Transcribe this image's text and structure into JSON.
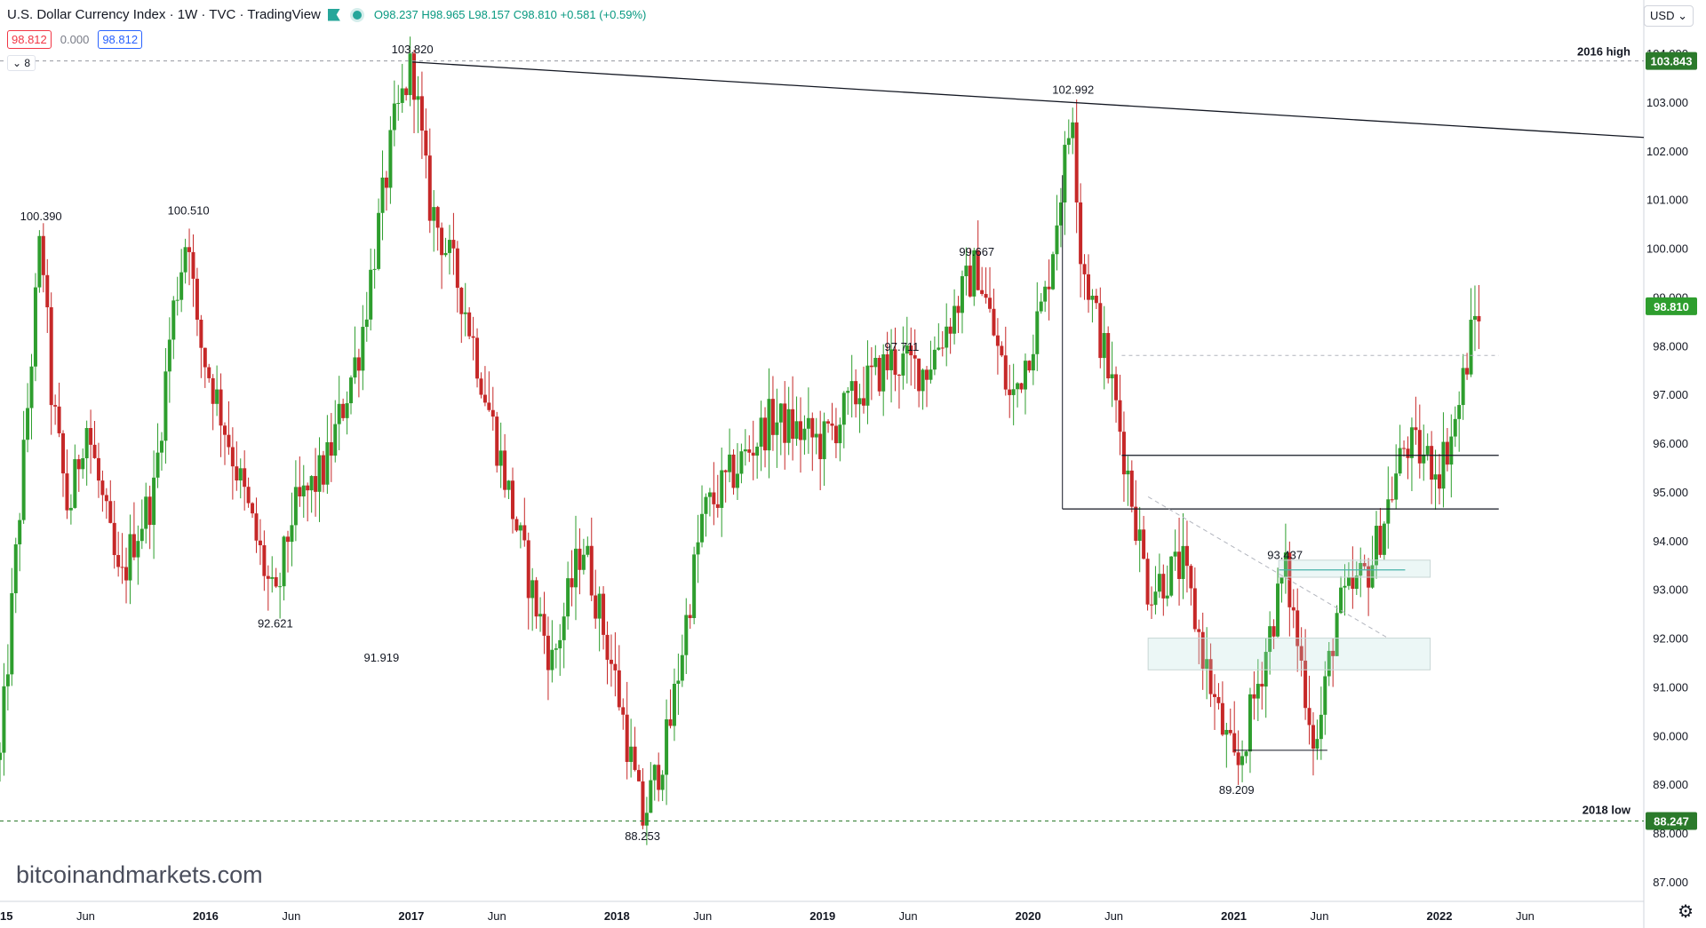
{
  "header": {
    "title": "U.S. Dollar Currency Index · 1W · TVC · TradingView",
    "ohlc": "O98.237 H98.965 L98.157 C98.810 +0.581 (+0.59%)",
    "values": {
      "close": "98.812",
      "change": "0.000",
      "last": "98.812"
    },
    "collapse_label": "⌄ 8",
    "currency": "USD"
  },
  "watermark": "bitcoinandmarkets.com",
  "price_axis": {
    "ticks": [
      "104.000",
      "103.000",
      "102.000",
      "101.000",
      "100.000",
      "99.000",
      "98.000",
      "97.000",
      "96.000",
      "95.000",
      "94.000",
      "93.000",
      "92.000",
      "91.000",
      "90.000",
      "89.000",
      "88.000",
      "87.000"
    ],
    "last_price_tag": "98.810",
    "high_tag": "103.843",
    "low_tag": "88.247"
  },
  "time_axis": {
    "labels": [
      "2015",
      "Jun",
      "2016",
      "Jun",
      "2017",
      "Jun",
      "2018",
      "Jun",
      "2019",
      "Jun",
      "2020",
      "Jun",
      "2021",
      "Jun",
      "2022",
      "Jun"
    ]
  },
  "annotations": {
    "level_labels": [
      "2016 high",
      "2018 low"
    ],
    "peak_labels": [
      "100.390",
      "92.621",
      "100.510",
      "91.919",
      "103.820",
      "88.253",
      "97.711",
      "99.667",
      "102.992",
      "93.437",
      "89.209"
    ]
  },
  "colors": {
    "up": "#26a69a",
    "down": "#ef5350",
    "up_body": "#2e9e2e",
    "down_body": "#c62828",
    "high_tag": "#2b7a2b",
    "low_tag": "#2b7a2b",
    "last_tag": "#2e9e2e"
  },
  "chart_data": {
    "type": "candlestick",
    "title": "U.S. Dollar Currency Index",
    "interval": "1W",
    "x_range": [
      "2015-01",
      "2022-09"
    ],
    "y_range": [
      86.6,
      104.3
    ],
    "anchors": [
      {
        "date": "2015-01",
        "close": 89.5
      },
      {
        "date": "2015-03",
        "close": 98.5
      },
      {
        "date": "2015-03-13",
        "close": 100.39
      },
      {
        "date": "2015-04",
        "close": 97.0
      },
      {
        "date": "2015-05",
        "close": 94.5
      },
      {
        "date": "2015-06",
        "close": 96.5
      },
      {
        "date": "2015-08",
        "close": 93.0
      },
      {
        "date": "2015-08-24",
        "close": 94.0
      },
      {
        "date": "2015-10",
        "close": 95.0
      },
      {
        "date": "2015-11",
        "close": 98.5
      },
      {
        "date": "2015-12-01",
        "close": 100.51
      },
      {
        "date": "2015-12-15",
        "close": 98.3
      },
      {
        "date": "2016-02",
        "close": 96.5
      },
      {
        "date": "2016-05-03",
        "close": 92.6
      },
      {
        "date": "2016-06",
        "close": 94.5
      },
      {
        "date": "2016-08",
        "close": 95.5
      },
      {
        "date": "2016-10",
        "close": 98.0
      },
      {
        "date": "2016-12",
        "close": 102.5
      },
      {
        "date": "2017-01-03",
        "close": 103.82
      },
      {
        "date": "2017-02",
        "close": 101.0
      },
      {
        "date": "2017-04",
        "close": 99.0
      },
      {
        "date": "2017-06",
        "close": 96.0
      },
      {
        "date": "2017-08",
        "close": 93.0
      },
      {
        "date": "2017-09-08",
        "close": 91.5
      },
      {
        "date": "2017-11",
        "close": 94.0
      },
      {
        "date": "2018-01",
        "close": 91.0
      },
      {
        "date": "2018-02-16",
        "close": 88.25
      },
      {
        "date": "2018-04",
        "close": 90.0
      },
      {
        "date": "2018-06",
        "close": 94.5
      },
      {
        "date": "2018-08",
        "close": 95.5
      },
      {
        "date": "2018-10",
        "close": 96.5
      },
      {
        "date": "2019-01",
        "close": 96.0
      },
      {
        "date": "2019-03",
        "close": 97.0
      },
      {
        "date": "2019-05",
        "close": 97.7
      },
      {
        "date": "2019-07",
        "close": 97.5
      },
      {
        "date": "2019-10-01",
        "close": 99.67
      },
      {
        "date": "2019-12",
        "close": 96.8
      },
      {
        "date": "2020-02",
        "close": 99.0
      },
      {
        "date": "2020-03-20",
        "close": 102.99
      },
      {
        "date": "2020-04",
        "close": 100.0
      },
      {
        "date": "2020-06",
        "close": 97.0
      },
      {
        "date": "2020-08",
        "close": 93.0
      },
      {
        "date": "2020-10",
        "close": 93.5
      },
      {
        "date": "2020-12",
        "close": 90.5
      },
      {
        "date": "2021-01-06",
        "close": 89.21
      },
      {
        "date": "2021-03-31",
        "close": 93.44
      },
      {
        "date": "2021-05-25",
        "close": 89.7
      },
      {
        "date": "2021-07",
        "close": 92.5
      },
      {
        "date": "2021-09",
        "close": 93.5
      },
      {
        "date": "2021-11",
        "close": 96.0
      },
      {
        "date": "2022-01",
        "close": 95.5
      },
      {
        "date": "2022-02",
        "close": 96.5
      },
      {
        "date": "2022-03",
        "close": 98.5
      },
      {
        "date": "2022-03-15",
        "close": 98.81
      }
    ]
  }
}
